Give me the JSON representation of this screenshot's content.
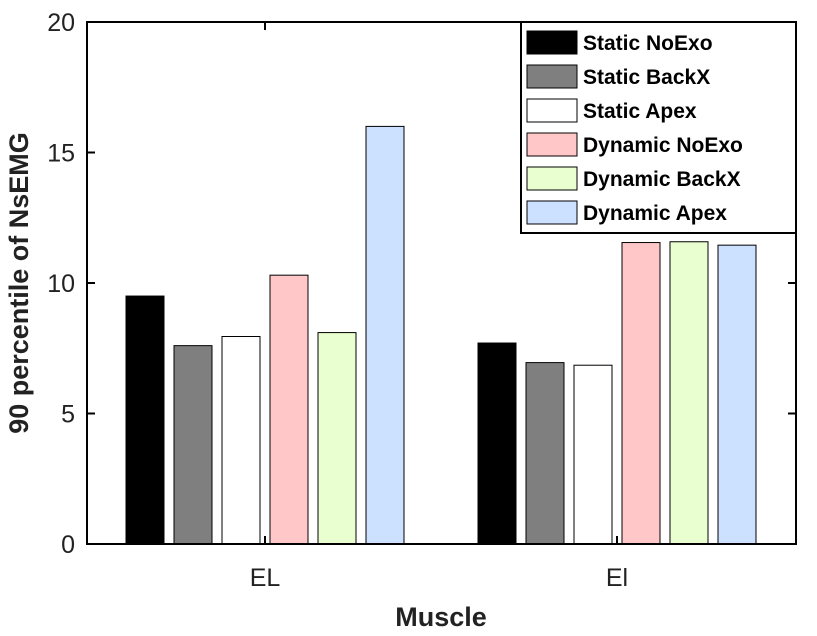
{
  "chart_data": {
    "type": "bar",
    "categories": [
      "EL",
      "El"
    ],
    "series": [
      {
        "name": "Static NoExo",
        "values": [
          9.5,
          7.7
        ],
        "color": "#000000"
      },
      {
        "name": "Static BackX",
        "values": [
          7.6,
          6.95
        ],
        "color": "#7f7f7f"
      },
      {
        "name": "Static Apex",
        "values": [
          7.95,
          6.85
        ],
        "color": "#ffffff"
      },
      {
        "name": "Dynamic NoExo",
        "values": [
          10.3,
          11.55
        ],
        "color": "#ffc7c7"
      },
      {
        "name": "Dynamic BackX",
        "values": [
          8.1,
          11.58
        ],
        "color": "#e9ffcf"
      },
      {
        "name": "Dynamic Apex",
        "values": [
          16.0,
          11.45
        ],
        "color": "#cce0ff"
      }
    ],
    "title": "",
    "xlabel": "Muscle",
    "ylabel": "90 percentile of NsEMG",
    "ylim": [
      0,
      20
    ],
    "yticks": [
      "0",
      "5",
      "10",
      "15",
      "20"
    ],
    "grid": false,
    "legend_position": "top-right"
  }
}
